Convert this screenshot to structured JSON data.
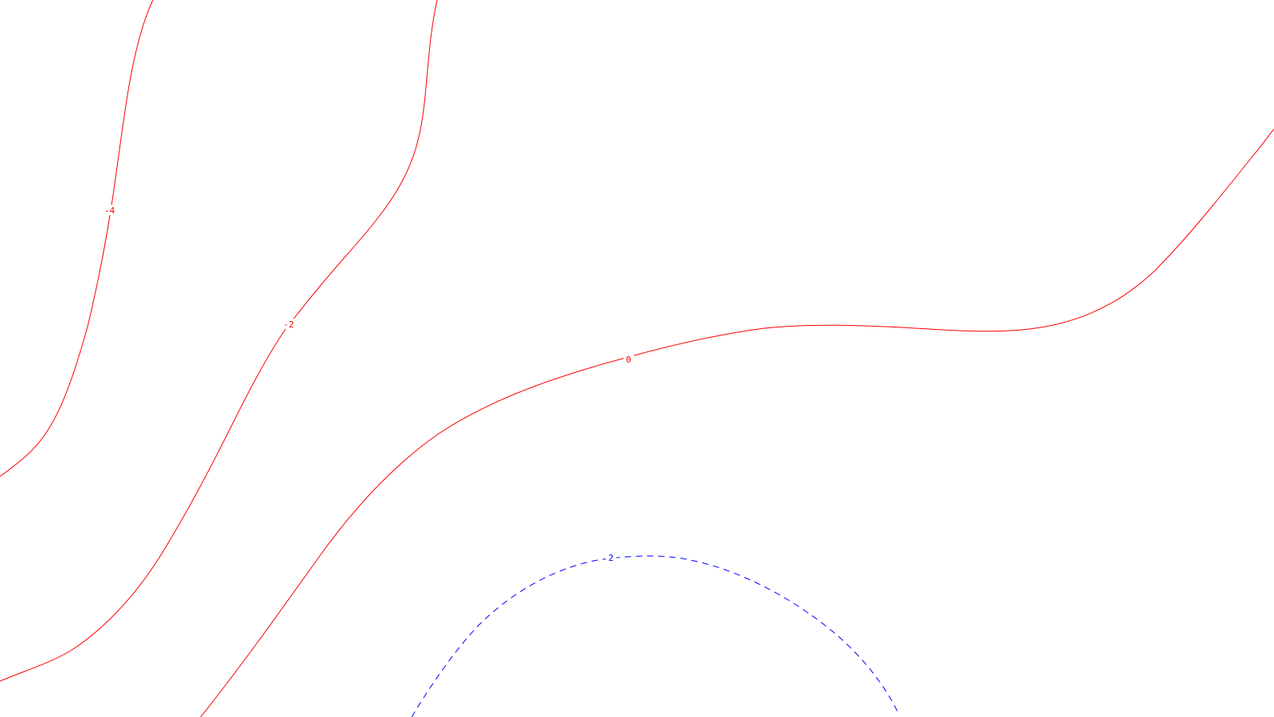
{
  "map": {
    "background_color": "#ffffff",
    "contours": [
      {
        "id": "contour-neg4",
        "label": "-4",
        "level": -4,
        "color": "#ff0000",
        "style": "solid"
      },
      {
        "id": "contour-neg2",
        "label": "-2",
        "level": -2,
        "color": "#ff0000",
        "style": "solid"
      },
      {
        "id": "contour-0",
        "label": "0",
        "level": 0,
        "color": "#ff0000",
        "style": "solid"
      },
      {
        "id": "contour-2",
        "label": "2",
        "level": 2,
        "color": "#0000ff",
        "style": "dashed"
      }
    ]
  }
}
